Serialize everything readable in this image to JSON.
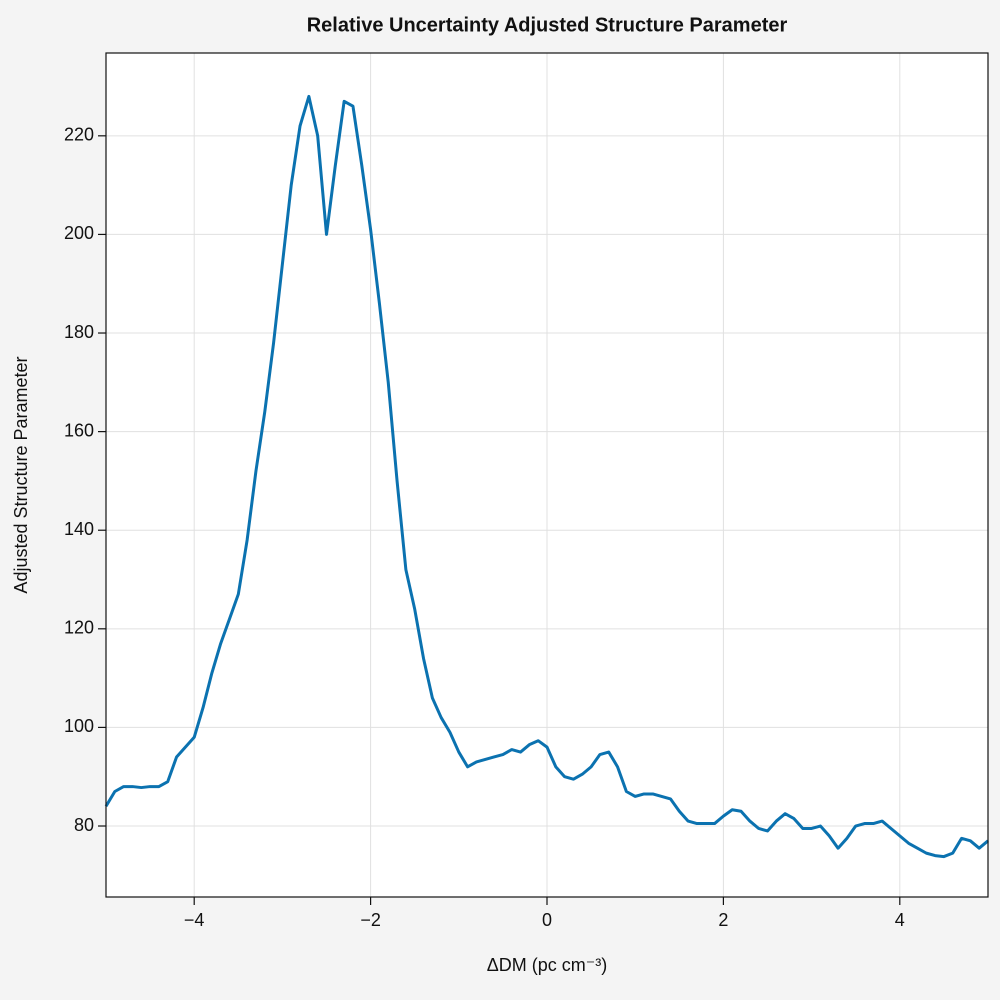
{
  "chart_data": {
    "type": "line",
    "title": "Relative Uncertainty Adjusted Structure Parameter",
    "xlabel": "ΔDM (pc cm⁻³)",
    "ylabel": "Adjusted Structure Parameter",
    "x": [
      -5.0,
      -4.9,
      -4.8,
      -4.7,
      -4.6,
      -4.5,
      -4.4,
      -4.3,
      -4.2,
      -4.1,
      -4.0,
      -3.9,
      -3.8,
      -3.7,
      -3.6,
      -3.5,
      -3.4,
      -3.3,
      -3.2,
      -3.1,
      -3.0,
      -2.9,
      -2.8,
      -2.7,
      -2.6,
      -2.5,
      -2.4,
      -2.3,
      -2.2,
      -2.1,
      -2.0,
      -1.9,
      -1.8,
      -1.7,
      -1.6,
      -1.5,
      -1.4,
      -1.3,
      -1.2,
      -1.1,
      -1.0,
      -0.9,
      -0.8,
      -0.7,
      -0.6,
      -0.5,
      -0.4,
      -0.3,
      -0.2,
      -0.1,
      0.0,
      0.1,
      0.2,
      0.3,
      0.4,
      0.5,
      0.6,
      0.7,
      0.8,
      0.9,
      1.0,
      1.1,
      1.2,
      1.3,
      1.4,
      1.5,
      1.6,
      1.7,
      1.8,
      1.9,
      2.0,
      2.1,
      2.2,
      2.3,
      2.4,
      2.5,
      2.6,
      2.7,
      2.8,
      2.9,
      3.0,
      3.1,
      3.2,
      3.3,
      3.4,
      3.5,
      3.6,
      3.7,
      3.8,
      3.9,
      4.0,
      4.1,
      4.2,
      4.3,
      4.4,
      4.5,
      4.6,
      4.7,
      4.8,
      4.9,
      5.0
    ],
    "series": [
      {
        "name": "Adjusted Structure Parameter",
        "color": "#0b72b0",
        "values": [
          84,
          87,
          88,
          88,
          87.8,
          88,
          88,
          89,
          94,
          96,
          98,
          104,
          111,
          117,
          122,
          127,
          138,
          152,
          164,
          178,
          194,
          210,
          222,
          228,
          220,
          200,
          214,
          227,
          226,
          214,
          201,
          186,
          170,
          150,
          132,
          124,
          114,
          106,
          102,
          99,
          95,
          92,
          93,
          93.5,
          94,
          94.5,
          95.5,
          95,
          96.5,
          97.3,
          96,
          92,
          90,
          89.5,
          90.5,
          92,
          94.5,
          95,
          92,
          87,
          86,
          86.5,
          86.5,
          86,
          85.5,
          83,
          81,
          80.5,
          80.5,
          80.5,
          82,
          83.3,
          83,
          81,
          79.5,
          79,
          81,
          82.5,
          81.5,
          79.5,
          79.5,
          80,
          78,
          75.5,
          77.5,
          80,
          80.5,
          80.5,
          81,
          79.5,
          78,
          76.5,
          75.5,
          74.5,
          74,
          73.8,
          74.5,
          77.5,
          77,
          75.5,
          77
        ]
      }
    ],
    "xlim": [
      -5,
      5
    ],
    "ylim": [
      65.6,
      236.8
    ],
    "xticks": [
      {
        "value": -4,
        "label": "−4"
      },
      {
        "value": -2,
        "label": "−2"
      },
      0,
      2,
      4
    ],
    "yticks": [
      80,
      100,
      120,
      140,
      160,
      180,
      200,
      220
    ],
    "grid": true
  }
}
